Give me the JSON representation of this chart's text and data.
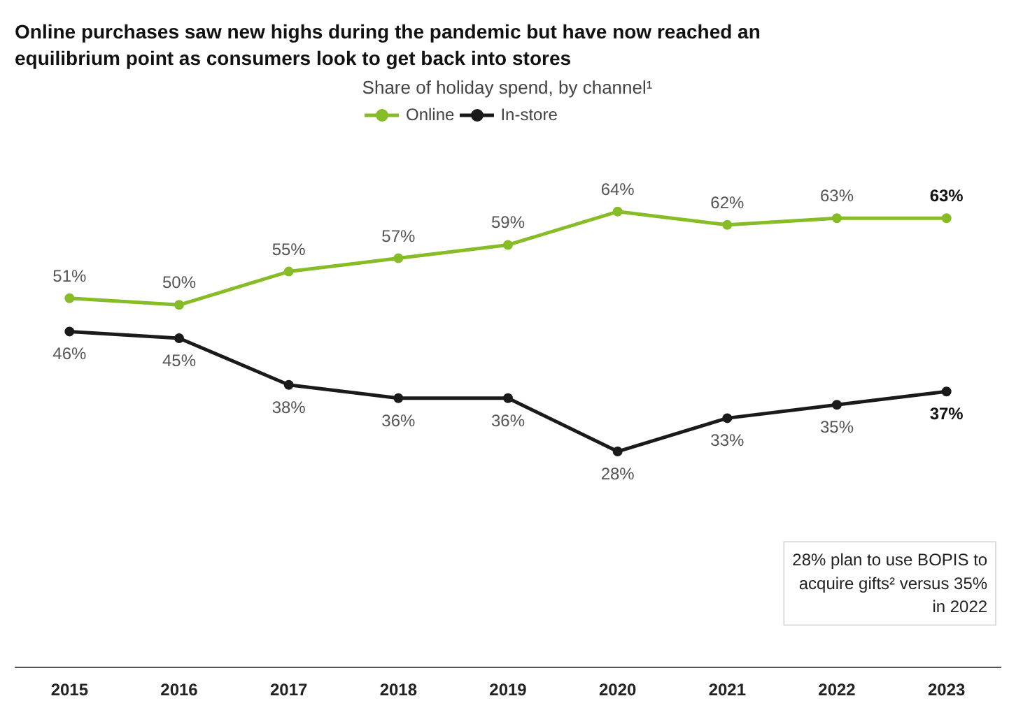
{
  "chart_data": {
    "type": "line",
    "title": "Online purchases saw new highs during the pandemic but have now reached an equilibrium point as consumers look to get back into stores",
    "subtitle": "Share of holiday spend, by channel¹",
    "categories": [
      "2015",
      "2016",
      "2017",
      "2018",
      "2019",
      "2020",
      "2021",
      "2022",
      "2023"
    ],
    "series": [
      {
        "name": "Online",
        "color": "#86bc25",
        "values": [
          51,
          50,
          55,
          57,
          59,
          64,
          62,
          63,
          63
        ],
        "value_labels": [
          "51%",
          "50%",
          "55%",
          "57%",
          "59%",
          "64%",
          "62%",
          "63%",
          "63%"
        ]
      },
      {
        "name": "In-store",
        "color": "#1a1a1a",
        "values": [
          46,
          45,
          38,
          36,
          36,
          28,
          33,
          35,
          37
        ],
        "value_labels": [
          "46%",
          "45%",
          "38%",
          "36%",
          "36%",
          "28%",
          "33%",
          "35%",
          "37%"
        ]
      }
    ],
    "annotations": [
      "28% plan to use BOPIS to acquire gifts² versus 35% in 2022"
    ],
    "legend": "top",
    "marker": "circle",
    "line_style": "solid",
    "grid": false
  }
}
